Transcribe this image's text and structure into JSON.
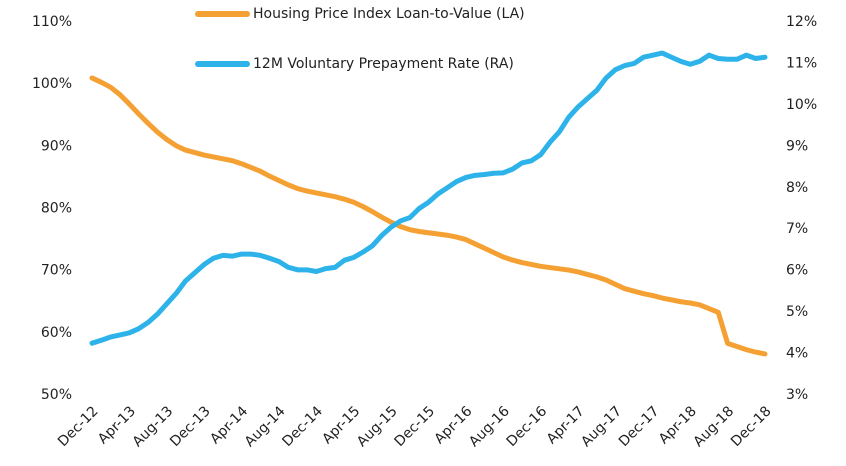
{
  "chart_data": {
    "type": "line",
    "categories": [
      "Dec-12",
      null,
      null,
      null,
      "Apr-13",
      null,
      null,
      null,
      "Aug-13",
      null,
      null,
      null,
      "Dec-13",
      null,
      null,
      null,
      "Apr-14",
      null,
      null,
      null,
      "Aug-14",
      null,
      null,
      null,
      "Dec-14",
      null,
      null,
      null,
      "Apr-15",
      null,
      null,
      null,
      "Aug-15",
      null,
      null,
      null,
      "Dec-15",
      null,
      null,
      null,
      "Apr-16",
      null,
      null,
      null,
      "Aug-16",
      null,
      null,
      null,
      "Dec-16",
      null,
      null,
      null,
      "Apr-17",
      null,
      null,
      null,
      "Aug-17",
      null,
      null,
      null,
      "Dec-17",
      null,
      null,
      null,
      "Apr-18",
      null,
      null,
      null,
      "Aug-18",
      null,
      null,
      null,
      "Dec-18"
    ],
    "series": [
      {
        "name": "Housing Price Index Loan-to-Value (LA)",
        "color": "#f5a033",
        "axis": "y",
        "values": [
          101,
          100.3,
          99.5,
          98.3,
          96.8,
          95.2,
          93.7,
          92.3,
          91.1,
          90.1,
          89.4,
          89,
          88.6,
          88.3,
          88,
          87.7,
          87.2,
          86.6,
          86,
          85.2,
          84.5,
          83.8,
          83.2,
          82.8,
          82.5,
          82.2,
          81.9,
          81.5,
          81,
          80.3,
          79.5,
          78.6,
          77.8,
          77.1,
          76.6,
          76.3,
          76.1,
          75.9,
          75.7,
          75.4,
          75,
          74.3,
          73.6,
          72.9,
          72.2,
          71.7,
          71.3,
          71,
          70.7,
          70.5,
          70.3,
          70.1,
          69.8,
          69.4,
          69,
          68.5,
          67.8,
          67.1,
          66.7,
          66.3,
          66,
          65.6,
          65.3,
          65,
          64.8,
          64.5,
          63.9,
          63.3,
          58.3,
          57.8,
          57.3,
          56.9,
          56.6
        ]
      },
      {
        "name": "12M Voluntary Prepayment Rate (RA)",
        "color": "#2db3ea",
        "axis": "y2",
        "values": [
          4.25,
          4.32,
          4.4,
          4.45,
          4.5,
          4.6,
          4.75,
          4.95,
          5.2,
          5.45,
          5.75,
          5.95,
          6.15,
          6.3,
          6.37,
          6.35,
          6.4,
          6.4,
          6.37,
          6.3,
          6.22,
          6.08,
          6.02,
          6.02,
          5.98,
          6.05,
          6.08,
          6.25,
          6.32,
          6.45,
          6.6,
          6.85,
          7.05,
          7.2,
          7.28,
          7.5,
          7.65,
          7.85,
          8.0,
          8.15,
          8.25,
          8.3,
          8.32,
          8.35,
          8.36,
          8.45,
          8.6,
          8.65,
          8.8,
          9.1,
          9.35,
          9.7,
          9.95,
          10.15,
          10.35,
          10.65,
          10.85,
          10.95,
          11.0,
          11.15,
          11.2,
          11.25,
          11.15,
          11.05,
          10.98,
          11.05,
          11.2,
          11.12,
          11.1,
          11.1,
          11.2,
          11.12,
          11.15
        ]
      }
    ],
    "ylim": [
      50,
      110
    ],
    "yticks": [
      {
        "value": 50,
        "label": "50%"
      },
      {
        "value": 60,
        "label": "60%"
      },
      {
        "value": 70,
        "label": "70%"
      },
      {
        "value": 80,
        "label": "80%"
      },
      {
        "value": 90,
        "label": "90%"
      },
      {
        "value": 100,
        "label": "100%"
      },
      {
        "value": 110,
        "label": "110%"
      }
    ],
    "y2lim": [
      3,
      12
    ],
    "y2ticks": [
      {
        "value": 3,
        "label": "3%"
      },
      {
        "value": 4,
        "label": "4%"
      },
      {
        "value": 5,
        "label": "5%"
      },
      {
        "value": 6,
        "label": "6%"
      },
      {
        "value": 7,
        "label": "7%"
      },
      {
        "value": 8,
        "label": "8%"
      },
      {
        "value": 9,
        "label": "9%"
      },
      {
        "value": 10,
        "label": "10%"
      },
      {
        "value": 11,
        "label": "11%"
      },
      {
        "value": 12,
        "label": "12%"
      }
    ],
    "grid": false,
    "legend": "upper center"
  }
}
